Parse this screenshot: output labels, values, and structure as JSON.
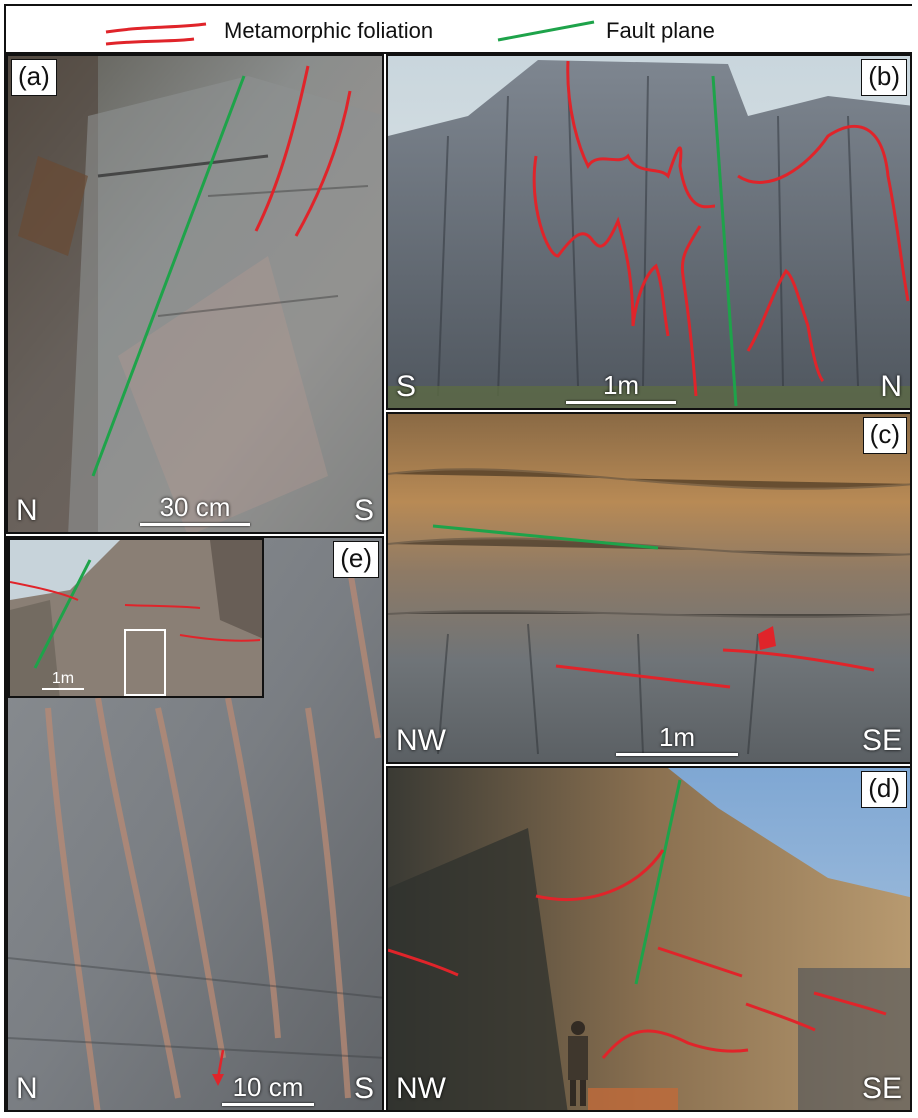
{
  "legend": {
    "foliation_label": "Metamorphic foliation",
    "fault_label": "Fault plane",
    "foliation_color": "#e0242a",
    "fault_color": "#1ea34a"
  },
  "panels": {
    "a": {
      "label": "(a)",
      "left_dir": "N",
      "right_dir": "S",
      "scale": "30 cm"
    },
    "b": {
      "label": "(b)",
      "left_dir": "S",
      "right_dir": "N",
      "scale": "1m"
    },
    "c": {
      "label": "(c)",
      "left_dir": "NW",
      "right_dir": "SE",
      "scale": "1m"
    },
    "d": {
      "label": "(d)",
      "left_dir": "NW",
      "right_dir": "SE"
    },
    "e": {
      "label": "(e)",
      "left_dir": "N",
      "right_dir": "S",
      "scale": "10 cm",
      "inset_scale": "1m"
    }
  }
}
